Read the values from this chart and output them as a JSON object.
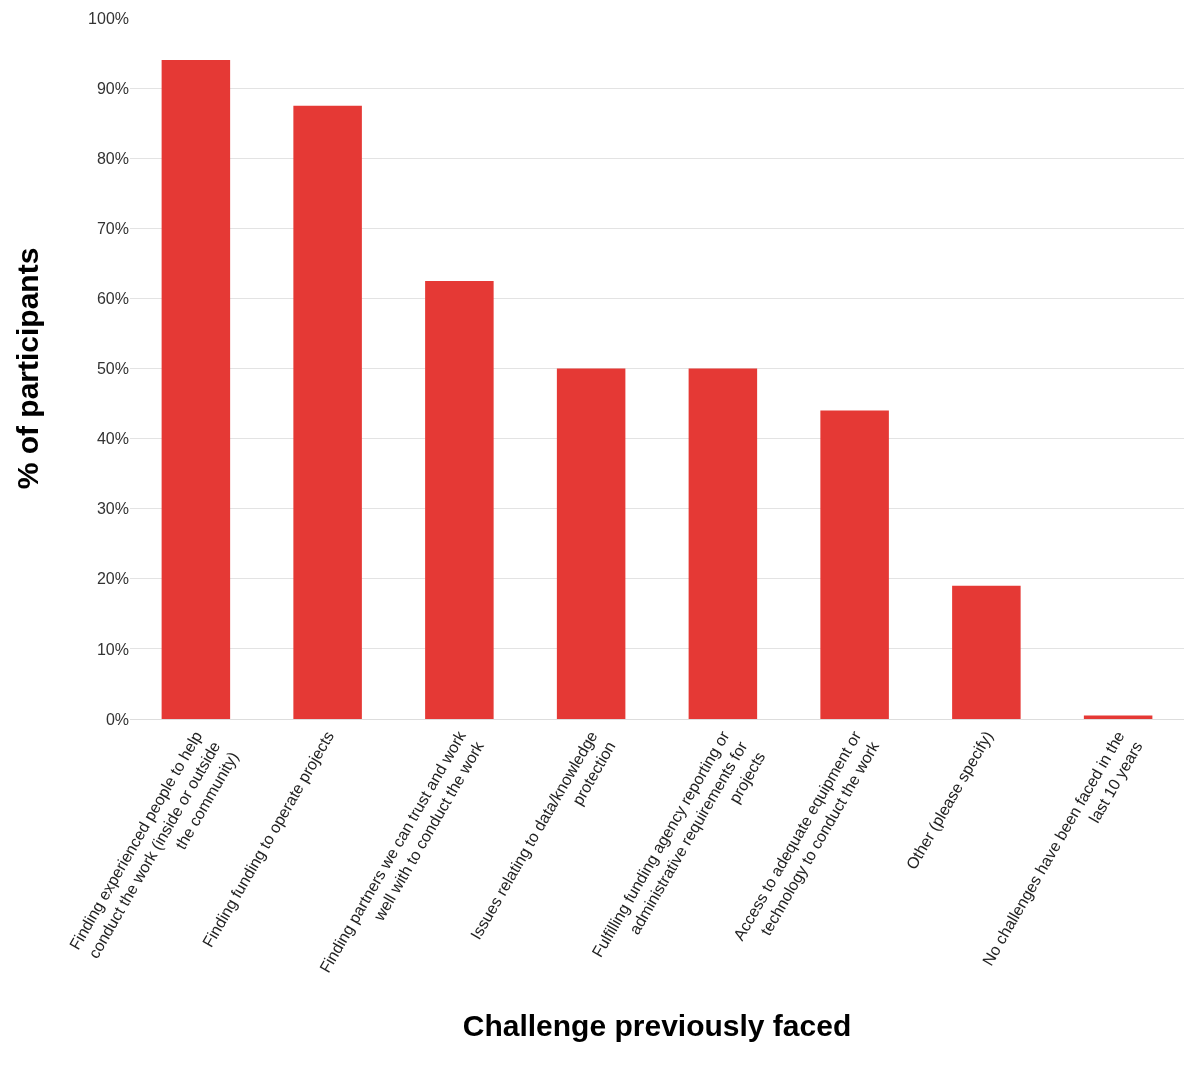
{
  "chart_data": {
    "type": "bar",
    "xlabel": "Challenge previously faced",
    "ylabel": "% of participants",
    "categories": [
      "Finding experienced people to help conduct the work (inside or outside the community)",
      "Finding funding to operate projects",
      "Finding partners we can trust and work well with to conduct the work",
      "Issues relating to data/knowledge protection",
      "Fulfilling funding agency reporting or administrative requirements for projects",
      "Access to adequate equipment or technology to conduct the work",
      "Other (please specify)",
      "No challenges have been faced in the last 10 years"
    ],
    "values": [
      94,
      87.5,
      62.5,
      50,
      50,
      44,
      19,
      0.5
    ],
    "color": "#e53935",
    "ylim": [
      0,
      100
    ],
    "yticks": [
      {
        "value": 0,
        "label": "0%"
      },
      {
        "value": 10,
        "label": "10%"
      },
      {
        "value": 20,
        "label": "20%"
      },
      {
        "value": 30,
        "label": "30%"
      },
      {
        "value": 40,
        "label": "40%"
      },
      {
        "value": 50,
        "label": "50%"
      },
      {
        "value": 60,
        "label": "60%"
      },
      {
        "value": 70,
        "label": "70%"
      },
      {
        "value": 80,
        "label": "80%"
      },
      {
        "value": 90,
        "label": "90%"
      },
      {
        "value": 100,
        "label": "100%"
      }
    ],
    "grid": "y"
  }
}
